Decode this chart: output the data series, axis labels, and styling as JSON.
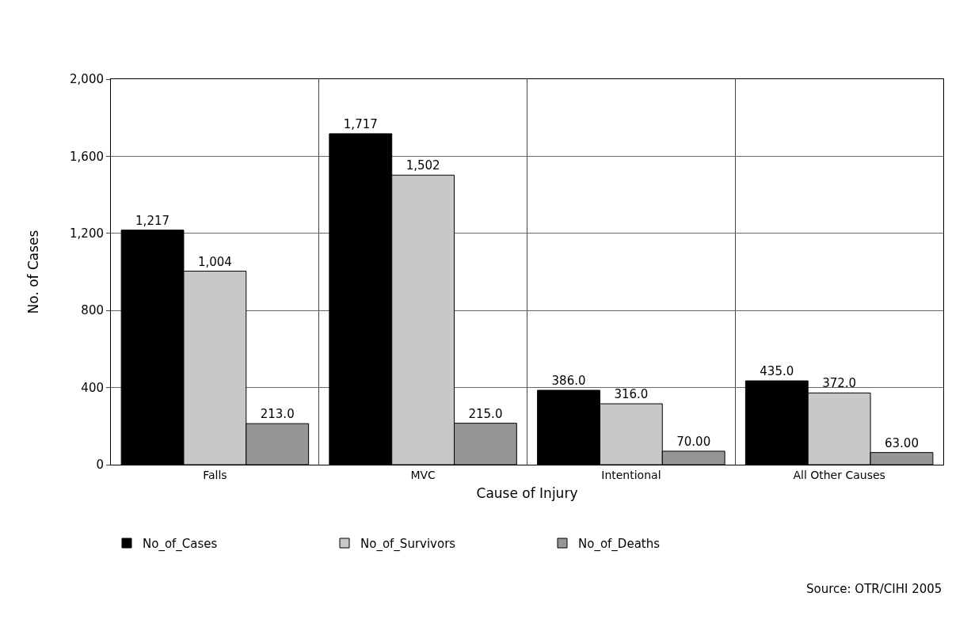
{
  "chart_data": {
    "type": "bar",
    "xlabel": "Cause of Injury",
    "ylabel": "No. of Cases",
    "categories": [
      "Falls",
      "MVC",
      "Intentional",
      "All Other Causes"
    ],
    "series": [
      {
        "name": "No_of_Cases",
        "color": "#000000",
        "values": [
          1217,
          1717,
          386,
          435
        ],
        "value_labels": [
          "1,217",
          "1,717",
          "386.0",
          "435.0"
        ]
      },
      {
        "name": "No_of_Survivors",
        "color": "#c8c8c8",
        "values": [
          1004,
          1502,
          316,
          372
        ],
        "value_labels": [
          "1,004",
          "1,502",
          "316.0",
          "372.0"
        ]
      },
      {
        "name": "No_of_Deaths",
        "color": "#969696",
        "values": [
          213,
          215,
          70,
          63
        ],
        "value_labels": [
          "213.0",
          "215.0",
          "70.00",
          "63.00"
        ]
      }
    ],
    "ylim": [
      0,
      2000
    ],
    "yticks": [
      0,
      400,
      800,
      {
        "value": 1200,
        "label": "1,200"
      },
      {
        "value": 1600,
        "label": "1,600"
      },
      {
        "value": 2000,
        "label": "2,000"
      }
    ],
    "grid": true,
    "legend": "bottom",
    "annotations": [
      "Source: OTR/CIHI 2005"
    ]
  }
}
